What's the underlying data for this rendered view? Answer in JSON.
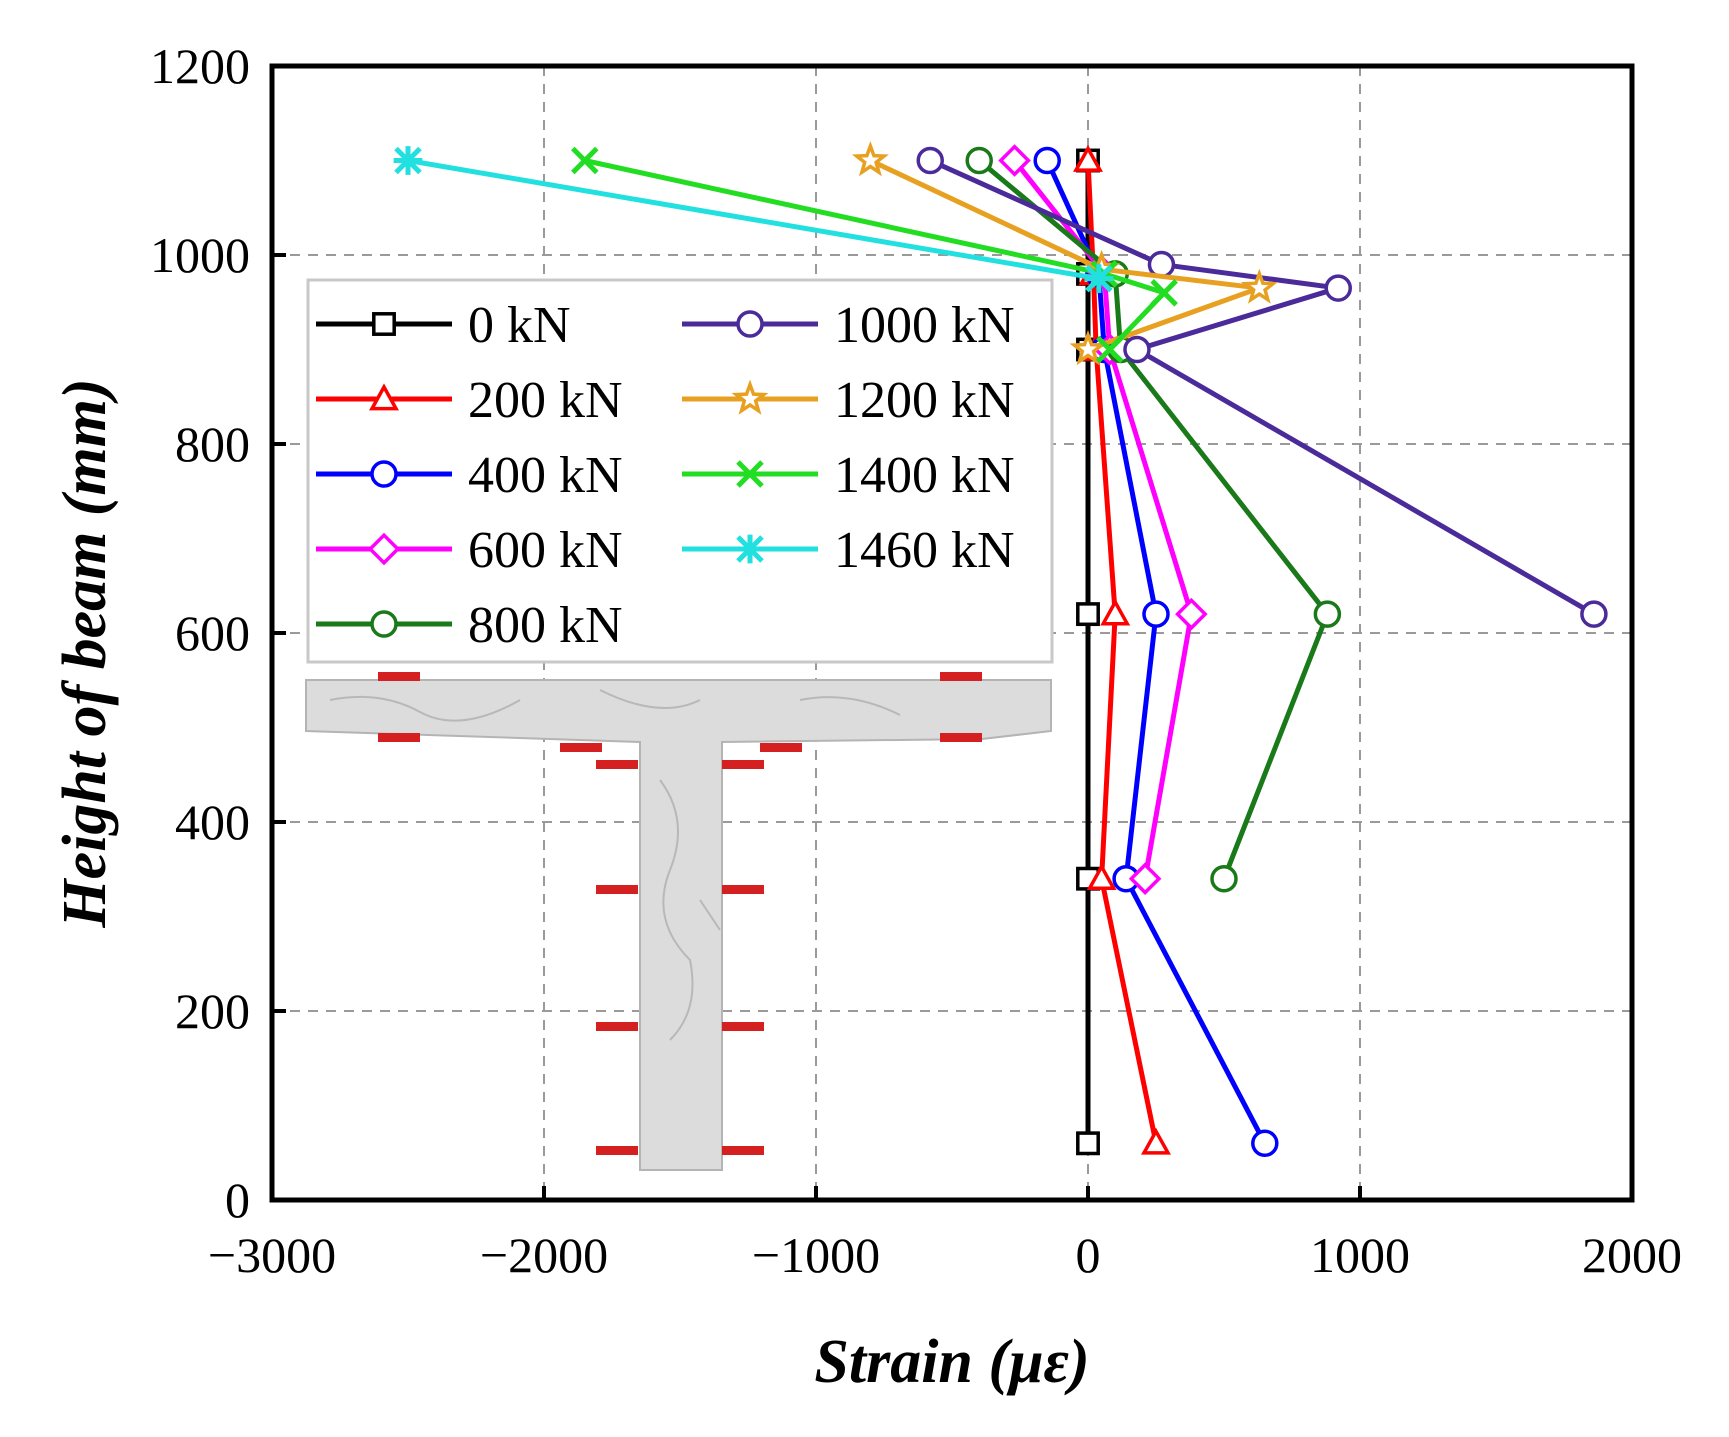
{
  "chart_data": {
    "type": "line",
    "xlabel": "Strain (με)",
    "ylabel": "Height of beam (mm)",
    "xlim": [
      -3000,
      2000
    ],
    "ylim": [
      0,
      1200
    ],
    "xticks": [
      -3000,
      -2000,
      -1000,
      0,
      1000,
      2000
    ],
    "yticks": [
      0,
      200,
      400,
      600,
      800,
      1000,
      1200
    ],
    "xtick_labels": [
      "−3000",
      "−2000",
      "−1000",
      "0",
      "1000",
      "2000"
    ],
    "ytick_labels": [
      "0",
      "200",
      "400",
      "600",
      "800",
      "1000",
      "1200"
    ],
    "grid": true,
    "legend_position": "upper-left, two columns",
    "series": [
      {
        "name": "0 kN",
        "color": "#000000",
        "marker": "square",
        "x": [
          0,
          0,
          0,
          0,
          0,
          0
        ],
        "y": [
          1100,
          980,
          900,
          620,
          340,
          60
        ]
      },
      {
        "name": "200 kN",
        "color": "#ff0000",
        "marker": "triangle",
        "x": [
          0,
          20,
          30,
          100,
          50,
          250
        ],
        "y": [
          1100,
          980,
          900,
          620,
          340,
          60
        ]
      },
      {
        "name": "400 kN",
        "color": "#0000ff",
        "marker": "circle",
        "x": [
          -150,
          40,
          60,
          250,
          140,
          650
        ],
        "y": [
          1100,
          980,
          900,
          620,
          340,
          60
        ]
      },
      {
        "name": "600 kN",
        "color": "#ff00ff",
        "marker": "diamond",
        "x": [
          -270,
          60,
          80,
          380,
          210
        ],
        "y": [
          1100,
          980,
          900,
          620,
          340
        ]
      },
      {
        "name": "800 kN",
        "color": "#1a7a1a",
        "marker": "circle",
        "x": [
          -400,
          100,
          120,
          880,
          500
        ],
        "y": [
          1100,
          980,
          900,
          620,
          340
        ]
      },
      {
        "name": "1000 kN",
        "color": "#4b2a9a",
        "marker": "circle",
        "x": [
          -580,
          270,
          920,
          180,
          1860
        ],
        "y": [
          1100,
          990,
          965,
          900,
          620
        ]
      },
      {
        "name": "1200 kN",
        "color": "#e8a020",
        "marker": "star",
        "x": [
          -800,
          50,
          630,
          0
        ],
        "y": [
          1100,
          985,
          965,
          900
        ]
      },
      {
        "name": "1400 kN",
        "color": "#22dd22",
        "marker": "x",
        "x": [
          -1850,
          60,
          280,
          80
        ],
        "y": [
          1100,
          980,
          960,
          900
        ]
      },
      {
        "name": "1460 kN",
        "color": "#22e0e0",
        "marker": "asterisk",
        "x": [
          -2500,
          40
        ],
        "y": [
          1100,
          975
        ]
      }
    ]
  }
}
